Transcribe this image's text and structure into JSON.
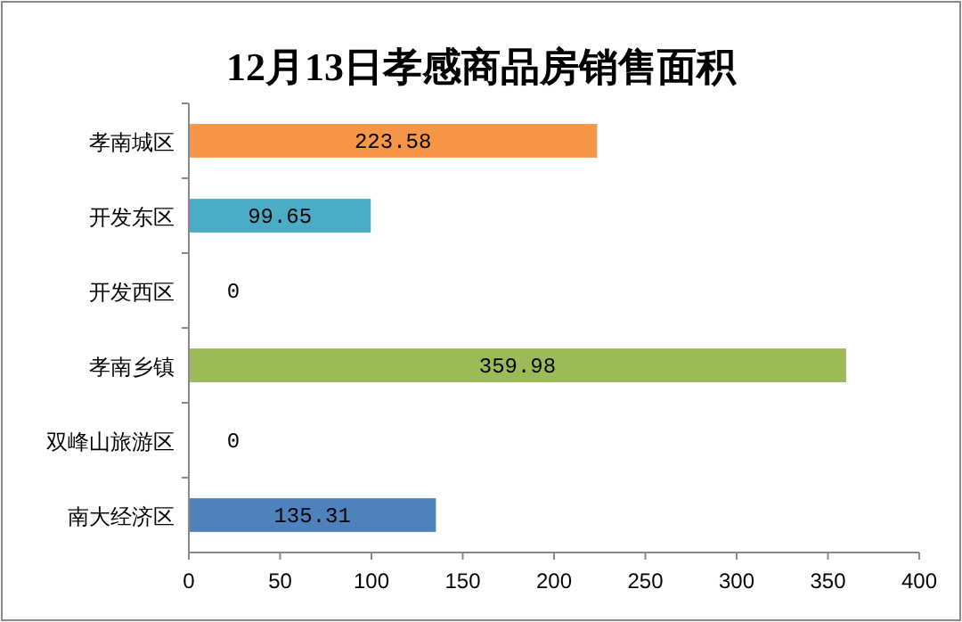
{
  "chart_data": {
    "type": "bar",
    "orientation": "horizontal",
    "title": "12月13日孝感商品房销售面积",
    "categories": [
      "孝南城区",
      "开发东区",
      "开发西区",
      "孝南乡镇",
      "双峰山旅游区",
      "南大经济区"
    ],
    "values": [
      223.58,
      99.65,
      0,
      359.98,
      0,
      135.31
    ],
    "colors": [
      "#f79646",
      "#4bacc6",
      "#8064a2",
      "#9bbb59",
      "#c0504d",
      "#4f81bd"
    ],
    "xlim": [
      0,
      400
    ],
    "xticks": [
      0,
      50,
      100,
      150,
      200,
      250,
      300,
      350,
      400
    ],
    "data_labels": true,
    "grid": false
  }
}
